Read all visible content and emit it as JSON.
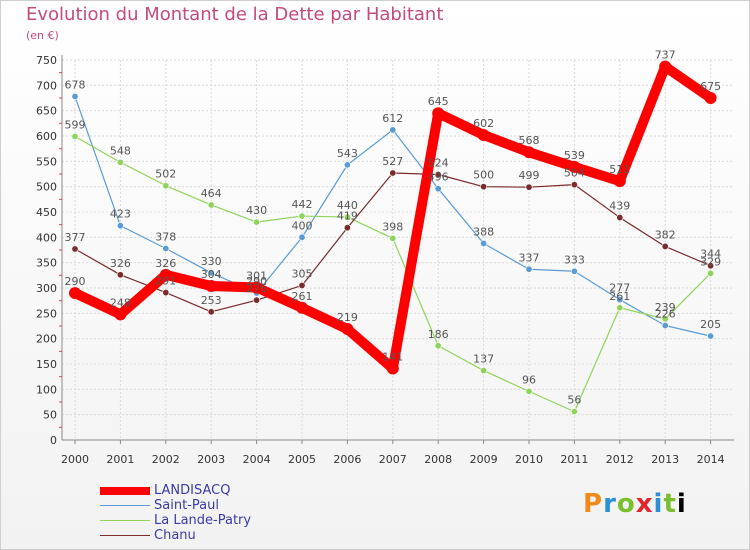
{
  "title": "Evolution du Montant de la Dette par Habitant",
  "subtitle": "(en €)",
  "logo": "Proxiti",
  "chart_data": {
    "type": "line",
    "x": [
      "2000",
      "2001",
      "2002",
      "2003",
      "2004",
      "2005",
      "2006",
      "2007",
      "2008",
      "2009",
      "2010",
      "2011",
      "2012",
      "2013",
      "2014"
    ],
    "ylim": [
      0,
      750
    ],
    "yticks": [
      0,
      50,
      100,
      150,
      200,
      250,
      300,
      350,
      400,
      450,
      500,
      550,
      600,
      650,
      700,
      750
    ],
    "grid": true,
    "legend_position": "bottom-left",
    "series": [
      {
        "name": "LANDISACQ",
        "color": "#ff0000",
        "values": [
          290,
          248,
          326,
          304,
          301,
          261,
          219,
          141,
          645,
          602,
          568,
          539,
          511,
          737,
          675
        ]
      },
      {
        "name": "Saint-Paul",
        "color": "#5b9bd5",
        "values": [
          678,
          423,
          378,
          330,
          290,
          400,
          543,
          612,
          496,
          388,
          337,
          333,
          277,
          226,
          205
        ]
      },
      {
        "name": "La Lande-Patry",
        "color": "#8fd45a",
        "values": [
          599,
          548,
          502,
          464,
          430,
          442,
          440,
          398,
          186,
          137,
          96,
          56,
          261,
          239,
          329
        ]
      },
      {
        "name": "Chanu",
        "color": "#7a2b2b",
        "values": [
          377,
          326,
          291,
          253,
          276,
          305,
          419,
          527,
          524,
          500,
          499,
          504,
          439,
          382,
          344
        ]
      }
    ]
  }
}
